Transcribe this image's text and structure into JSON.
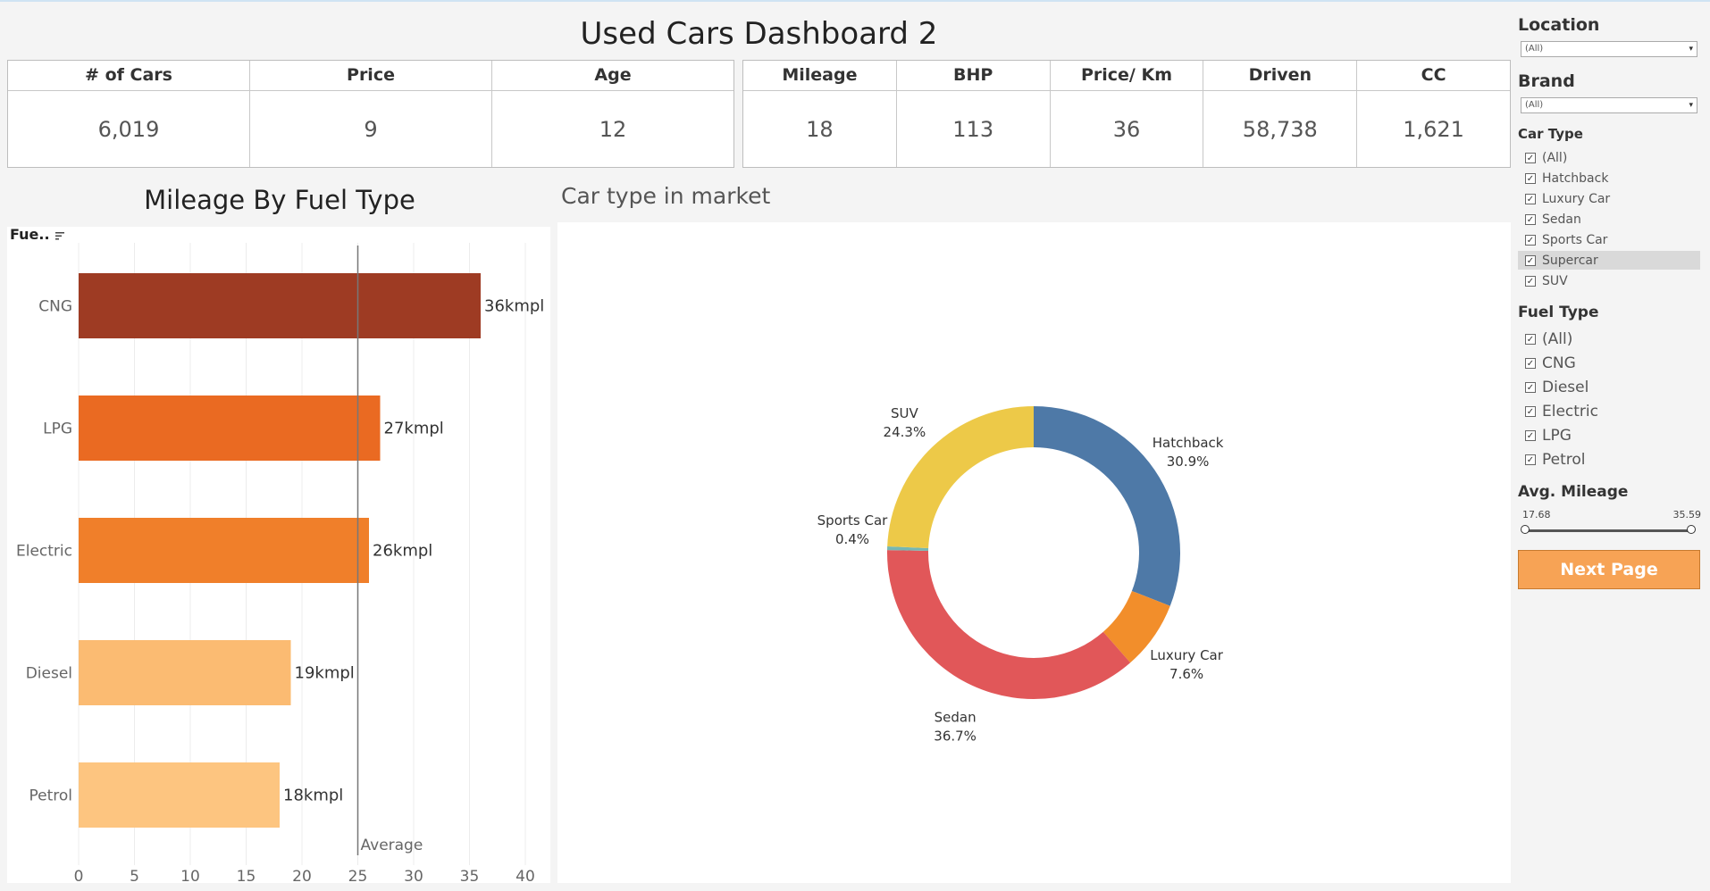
{
  "title": "Used Cars Dashboard 2",
  "kpis_left": [
    {
      "label": "# of Cars",
      "value": "6,019"
    },
    {
      "label": "Price",
      "value": "9"
    },
    {
      "label": "Age",
      "value": "12"
    }
  ],
  "kpis_right": [
    {
      "label": "Mileage",
      "value": "18"
    },
    {
      "label": "BHP",
      "value": "113"
    },
    {
      "label": "Price/ Km",
      "value": "36"
    },
    {
      "label": "Driven",
      "value": "58,738"
    },
    {
      "label": "CC",
      "value": "1,621"
    }
  ],
  "chart_data": [
    {
      "type": "bar",
      "orientation": "horizontal",
      "title": "Mileage By Fuel Type",
      "field_label": "Fue..",
      "categories": [
        "CNG",
        "LPG",
        "Electric",
        "Diesel",
        "Petrol"
      ],
      "values": [
        36,
        27,
        26,
        19,
        18
      ],
      "data_labels": [
        "36kmpl",
        "27kmpl",
        "26kmpl",
        "19kmpl",
        "18kmpl"
      ],
      "colors": [
        "#9e3b23",
        "#ea6a22",
        "#f07f2a",
        "#fbbb72",
        "#fdc580"
      ],
      "xlim": [
        0,
        40
      ],
      "xticks": [
        0,
        5,
        10,
        15,
        20,
        25,
        30,
        35,
        40
      ],
      "reference_line": {
        "label": "Average",
        "value": 25
      }
    },
    {
      "type": "pie",
      "donut": true,
      "title": "Car type in market",
      "categories": [
        "Hatchback",
        "Luxury Car",
        "Sedan",
        "Sports Car",
        "SUV"
      ],
      "values": [
        30.9,
        7.6,
        36.7,
        0.4,
        24.3
      ],
      "value_labels": [
        "30.9%",
        "7.6%",
        "36.7%",
        "0.4%",
        "24.3%"
      ],
      "colors": [
        "#4e79a7",
        "#f28e2b",
        "#e15759",
        "#76b7b2",
        "#edc948"
      ]
    }
  ],
  "filters": {
    "location": {
      "title": "Location",
      "value": "(All)"
    },
    "brand": {
      "title": "Brand",
      "value": "(All)"
    },
    "car_type": {
      "title": "Car Type",
      "items": [
        "(All)",
        "Hatchback",
        "Luxury Car",
        "Sedan",
        "Sports Car",
        "Supercar",
        "SUV"
      ],
      "selected_highlight": "Supercar"
    },
    "fuel_type": {
      "title": "Fuel Type",
      "items": [
        "(All)",
        "CNG",
        "Diesel",
        "Electric",
        "LPG",
        "Petrol"
      ]
    },
    "avg_mileage": {
      "title": "Avg. Mileage",
      "min": "17.68",
      "max": "35.59"
    },
    "next_button": "Next Page",
    "check_glyph": "✓",
    "chevron": "▾"
  }
}
